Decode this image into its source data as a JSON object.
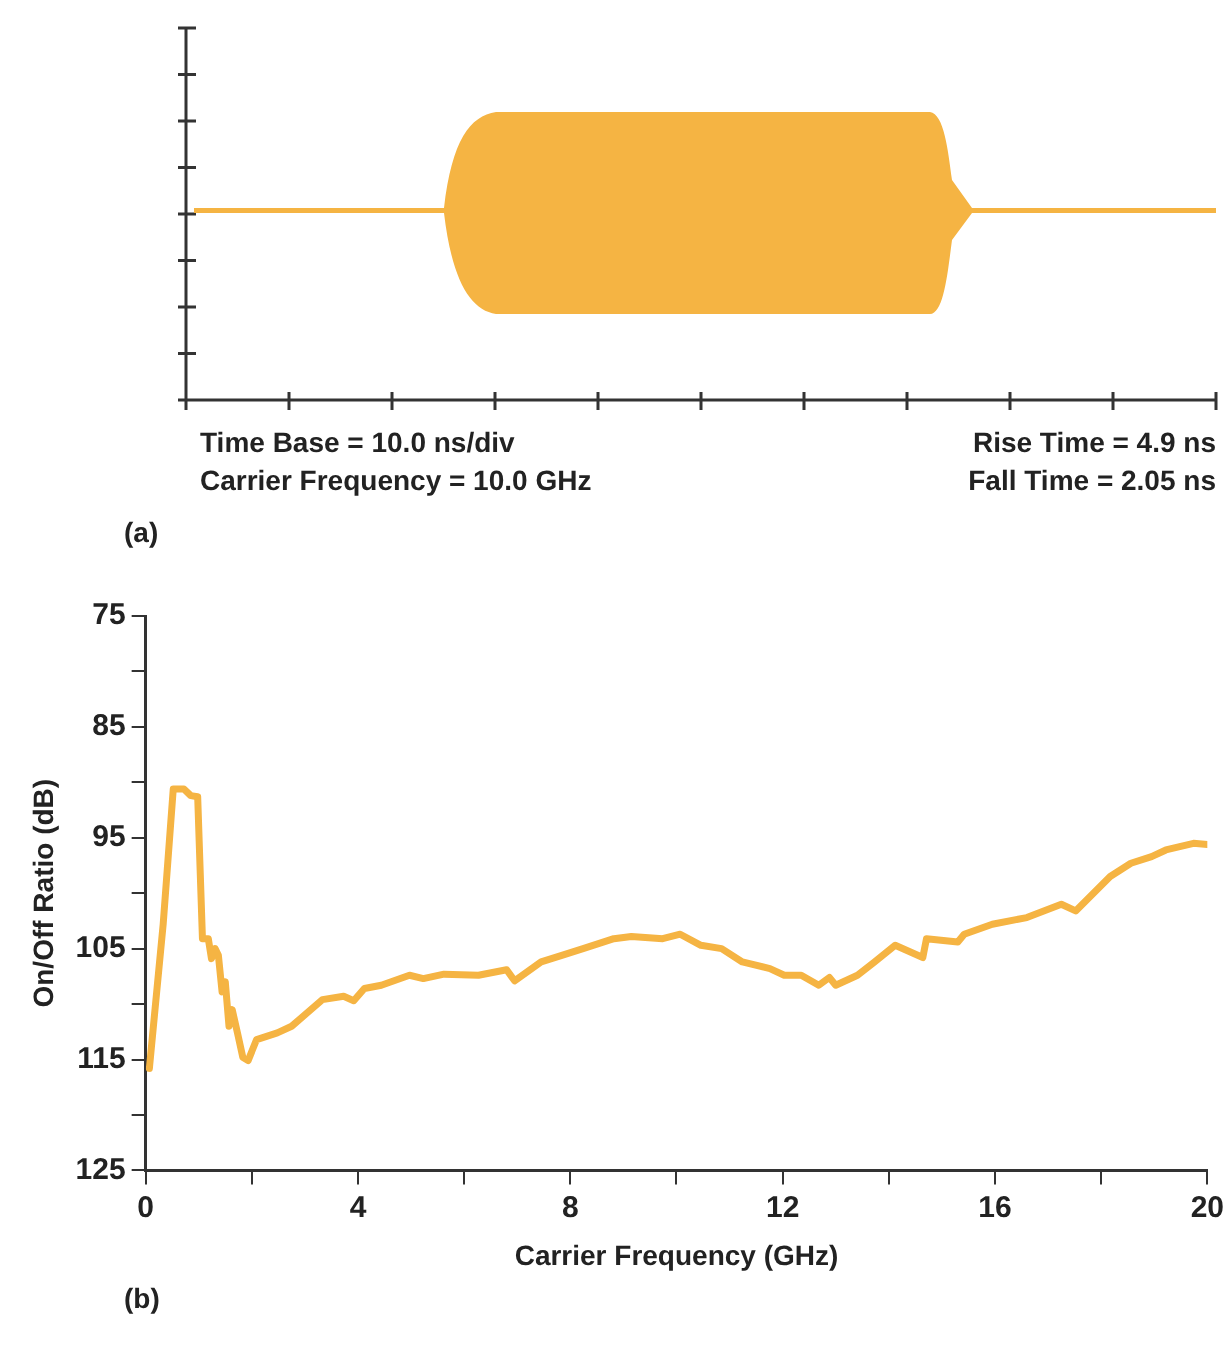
{
  "chart_data": [
    {
      "type": "other",
      "title": "(a)",
      "annotations": [
        "Time Base = 10.0 ns/div",
        "Carrier Frequency = 10.0 GHz",
        "Rise Time = 4.9 ns",
        "Fall Time = 2.05 ns"
      ]
    },
    {
      "type": "line",
      "title": "(b)",
      "xlabel": "Carrier Frequency (GHz)",
      "ylabel": "On/Off Ratio (dB)",
      "xlim": [
        0,
        20
      ],
      "xticks": [
        0,
        {
          "value": 2,
          "label": null
        },
        4,
        {
          "value": 6,
          "label": null
        },
        8,
        {
          "value": 10,
          "label": null
        },
        12,
        {
          "value": 14,
          "label": null
        },
        16,
        {
          "value": 18,
          "label": null
        },
        20
      ],
      "ylim": [
        125,
        75
      ],
      "yticks": [
        75,
        {
          "value": 80,
          "label": null
        },
        85,
        {
          "value": 90,
          "label": null
        },
        95,
        {
          "value": 100,
          "label": null
        },
        105,
        {
          "value": 110,
          "label": null
        },
        115,
        {
          "value": 120,
          "label": null
        },
        125
      ],
      "x": [
        0.07,
        0.33,
        0.52,
        0.72,
        0.85,
        0.98,
        1.07,
        1.18,
        1.24,
        1.31,
        1.37,
        1.44,
        1.5,
        1.57,
        1.63,
        1.73,
        1.83,
        1.93,
        2.09,
        2.48,
        2.75,
        3.33,
        3.73,
        3.92,
        4.12,
        4.44,
        4.97,
        5.23,
        5.62,
        6.27,
        6.8,
        6.95,
        7.45,
        7.84,
        8.24,
        8.82,
        9.15,
        9.74,
        10.07,
        10.46,
        10.85,
        11.24,
        11.76,
        12.03,
        12.35,
        12.68,
        12.88,
        13.0,
        13.41,
        13.73,
        14.12,
        14.64,
        14.71,
        15.3,
        15.42,
        15.95,
        16.6,
        17.25,
        17.52,
        18.17,
        18.56,
        18.95,
        19.22,
        19.74,
        20
      ],
      "series": [
        {
          "color": "#f5b443",
          "values": [
            115.8,
            102.8,
            90.6,
            90.6,
            91.2,
            91.3,
            104.1,
            104.1,
            105.9,
            105,
            105.6,
            108.9,
            108,
            112,
            110.5,
            112.6,
            114.8,
            115.1,
            113.2,
            112.6,
            112,
            109.6,
            109.3,
            109.7,
            108.6,
            108.3,
            107.4,
            107.7,
            107.3,
            107.4,
            106.9,
            107.9,
            106.2,
            105.6,
            105,
            104.1,
            103.9,
            104.1,
            103.7,
            104.7,
            105,
            106.2,
            106.8,
            107.4,
            107.4,
            108.3,
            107.6,
            108.3,
            107.4,
            106.2,
            104.7,
            105.8,
            104.1,
            104.4,
            103.7,
            102.8,
            102.2,
            101,
            101.6,
            98.5,
            97.3,
            96.7,
            96.1,
            95.5,
            95.6
          ]
        }
      ]
    }
  ]
}
